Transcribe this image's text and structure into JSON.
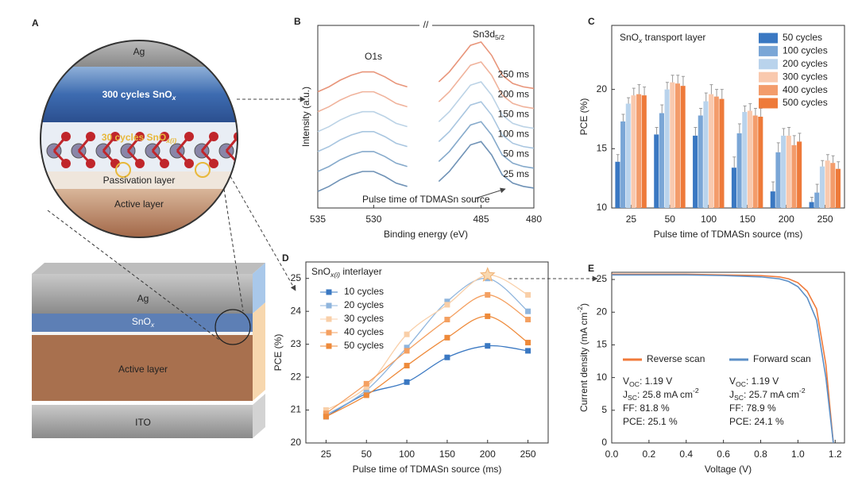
{
  "diagram": {
    "label": "A",
    "zoom": {
      "ag": "Ag",
      "snox": [
        "300 cycles SnO",
        {
          "sub": "x",
          "italic": true
        }
      ],
      "interlayer": [
        "30 cycles SnO",
        {
          "sub": "x(i)",
          "italic": true
        }
      ],
      "passivation": "Passivation layer",
      "active": "Active layer"
    },
    "stack": {
      "ag": "Ag",
      "snox": [
        "SnO",
        {
          "sub": "x",
          "italic": true
        }
      ],
      "active": "Active layer",
      "ito": "ITO"
    }
  },
  "chart_data": [
    {
      "type": "line",
      "label": "B",
      "x_label": "Binding energy (eV)",
      "y_label": "Intensity (a.u.)",
      "legend": "inline",
      "break_label": "//",
      "annotations": [
        "O1s",
        [
          "Sn3d",
          {
            "sub": "5/2"
          }
        ],
        "Pulse time of TDMASn source"
      ],
      "x": [
        535,
        534,
        533,
        532,
        531,
        530,
        529,
        528,
        527,
        508,
        489,
        488,
        487,
        486,
        485,
        484,
        483,
        482,
        481,
        480
      ],
      "xlim": [
        535,
        480
      ],
      "x_break": [
        526.5,
        489
      ],
      "xticks": [
        535,
        530,
        485,
        480
      ],
      "ylim": [
        0,
        11
      ],
      "series": [
        {
          "name": "25 ms",
          "color": "#6f92b6",
          "values": [
            1.0,
            1.3,
            1.7,
            2.0,
            2.2,
            2.2,
            1.9,
            1.5,
            1.3,
            null,
            1.6,
            2.2,
            3.0,
            3.8,
            4.0,
            3.2,
            2.0,
            1.5,
            1.3,
            1.2
          ]
        },
        {
          "name": "50 ms",
          "color": "#86aacb",
          "values": [
            2.2,
            2.5,
            2.9,
            3.2,
            3.4,
            3.4,
            3.1,
            2.7,
            2.5,
            null,
            2.8,
            3.4,
            4.2,
            5.0,
            5.2,
            4.4,
            3.2,
            2.7,
            2.5,
            2.4
          ]
        },
        {
          "name": "100 ms",
          "color": "#a9c6e0",
          "values": [
            3.4,
            3.7,
            4.1,
            4.4,
            4.6,
            4.6,
            4.3,
            3.9,
            3.7,
            null,
            4.0,
            4.6,
            5.4,
            6.2,
            6.4,
            5.6,
            4.4,
            3.9,
            3.7,
            3.6
          ]
        },
        {
          "name": "150 ms",
          "color": "#bcd3e6",
          "values": [
            4.6,
            4.9,
            5.3,
            5.6,
            5.8,
            5.8,
            5.5,
            5.1,
            4.9,
            null,
            5.2,
            5.8,
            6.6,
            7.4,
            7.6,
            6.8,
            5.6,
            5.1,
            4.9,
            4.8
          ]
        },
        {
          "name": "200 ms",
          "color": "#f0b39c",
          "values": [
            5.8,
            6.1,
            6.5,
            6.8,
            7.0,
            7.0,
            6.7,
            6.3,
            6.1,
            null,
            6.4,
            7.0,
            7.8,
            8.6,
            8.8,
            8.0,
            6.8,
            6.3,
            6.1,
            6.0
          ]
        },
        {
          "name": "250 ms",
          "color": "#e8957a",
          "values": [
            7.0,
            7.3,
            7.7,
            8.0,
            8.2,
            8.2,
            7.9,
            7.5,
            7.3,
            null,
            7.6,
            8.2,
            9.0,
            9.8,
            10.0,
            9.2,
            8.0,
            7.5,
            7.3,
            7.2
          ]
        }
      ]
    },
    {
      "type": "bar",
      "label": "C",
      "x_label": "Pulse time of TDMASn source (ms)",
      "y_label": "PCE (%)",
      "legend": "upper right",
      "annotations": [
        [
          "SnO",
          {
            "sub": "x",
            "italic": true
          },
          " transport layer"
        ]
      ],
      "categories": [
        "25",
        "50",
        "100",
        "150",
        "200",
        "250"
      ],
      "ylim": [
        10,
        25.4
      ],
      "yticks": [
        10,
        15,
        20
      ],
      "series": [
        {
          "name": "50 cycles",
          "color": "#3a78c2",
          "values": [
            13.9,
            16.2,
            16.1,
            13.4,
            11.4,
            10.5
          ],
          "errors": [
            0.6,
            0.6,
            0.7,
            0.9,
            0.8,
            0.4
          ]
        },
        {
          "name": "100 cycles",
          "color": "#7aa6d6",
          "values": [
            17.3,
            18.0,
            17.8,
            16.3,
            14.7,
            11.3
          ],
          "errors": [
            0.6,
            0.7,
            0.6,
            0.8,
            0.8,
            0.7
          ]
        },
        {
          "name": "200 cycles",
          "color": "#b9d3ec",
          "values": [
            18.8,
            20.0,
            19.0,
            18.1,
            16.1,
            13.5
          ],
          "errors": [
            0.5,
            0.6,
            0.7,
            0.5,
            0.6,
            0.5
          ]
        },
        {
          "name": "300 cycles",
          "color": "#f9c9ae",
          "values": [
            19.5,
            20.6,
            19.6,
            18.2,
            16.1,
            14.0
          ],
          "errors": [
            0.6,
            0.6,
            0.8,
            0.6,
            0.7,
            0.5
          ]
        },
        {
          "name": "400 cycles",
          "color": "#f39c6b",
          "values": [
            19.6,
            20.5,
            19.4,
            17.8,
            15.3,
            13.8
          ],
          "errors": [
            0.8,
            0.7,
            0.6,
            0.6,
            0.8,
            0.6
          ]
        },
        {
          "name": "500 cycles",
          "color": "#ee7a3a",
          "values": [
            19.5,
            20.3,
            19.2,
            17.7,
            15.6,
            13.3
          ],
          "errors": [
            0.7,
            0.8,
            0.8,
            0.7,
            0.7,
            0.6
          ]
        }
      ]
    },
    {
      "type": "line",
      "label": "D",
      "x_label": "Pulse time of TDMASn source (ms)",
      "y_label": "PCE (%)",
      "legend": "upper left",
      "smooth": true,
      "marker": "square",
      "star_at_max": true,
      "annotations": [
        [
          "SnO",
          {
            "sub": "x(i)",
            "italic": true
          },
          " interlayer"
        ]
      ],
      "categories": [
        "25",
        "50",
        "100",
        "150",
        "200",
        "250"
      ],
      "ylim": [
        20,
        25.5
      ],
      "yticks": [
        20,
        21,
        22,
        23,
        24,
        25
      ],
      "series": [
        {
          "name": "10 cycles",
          "color": "#3a78c2",
          "values": [
            20.8,
            21.5,
            21.85,
            22.6,
            22.95,
            22.8
          ]
        },
        {
          "name": "20 cycles",
          "color": "#8fb5dd",
          "values": [
            20.85,
            21.6,
            22.9,
            24.3,
            25.0,
            24.0
          ]
        },
        {
          "name": "30 cycles",
          "color": "#f9cfa8",
          "values": [
            21.0,
            21.7,
            23.3,
            24.2,
            25.1,
            24.5
          ]
        },
        {
          "name": "40 cycles",
          "color": "#f4a061",
          "values": [
            20.9,
            21.8,
            22.8,
            23.75,
            24.5,
            23.75
          ]
        },
        {
          "name": "50 cycles",
          "color": "#ee8a3a",
          "values": [
            20.8,
            21.45,
            22.35,
            23.2,
            23.85,
            23.05
          ]
        }
      ]
    },
    {
      "type": "line",
      "label": "E",
      "x_label": "Voltage (V)",
      "y_label": [
        "Current density (mA cm",
        {
          "sup": "-2"
        },
        ")"
      ],
      "legend": "row",
      "x": [
        0,
        0.2,
        0.4,
        0.6,
        0.8,
        0.9,
        0.95,
        1.0,
        1.05,
        1.1,
        1.15,
        1.19
      ],
      "xlim": [
        0,
        1.25
      ],
      "xticks": [
        {
          "value": 0,
          "label": "0.0"
        },
        0.2,
        0.4,
        0.6,
        0.8,
        {
          "value": 1,
          "label": "1.0"
        },
        1.2
      ],
      "ylim": [
        0,
        26.1
      ],
      "yticks": [
        0,
        5,
        10,
        15,
        20,
        25
      ],
      "series": [
        {
          "name": "Reverse scan",
          "color": "#f07a3a",
          "values": [
            25.8,
            25.8,
            25.8,
            25.7,
            25.6,
            25.4,
            25.1,
            24.5,
            23.2,
            20.5,
            12.0,
            0
          ],
          "stats": [
            [
              "V",
              {
                "sub": "OC"
              },
              ": 1.19 V"
            ],
            [
              "J",
              {
                "sub": "SC"
              },
              ": 25.8 mA cm",
              {
                "sup": "-2"
              }
            ],
            [
              "FF: 81.8 %"
            ],
            [
              "PCE: 25.1 %"
            ]
          ]
        },
        {
          "name": "Forward scan",
          "color": "#5b8fc7",
          "values": [
            25.7,
            25.7,
            25.7,
            25.6,
            25.4,
            25.1,
            24.7,
            23.9,
            22.2,
            18.8,
            10.0,
            0
          ],
          "stats": [
            [
              "V",
              {
                "sub": "OC"
              },
              ": 1.19 V"
            ],
            [
              "J",
              {
                "sub": "SC"
              },
              ": 25.7 mA cm",
              {
                "sup": "-2"
              }
            ],
            [
              "FF: 78.9 %"
            ],
            [
              "PCE: 24.1 %"
            ]
          ]
        }
      ]
    }
  ]
}
